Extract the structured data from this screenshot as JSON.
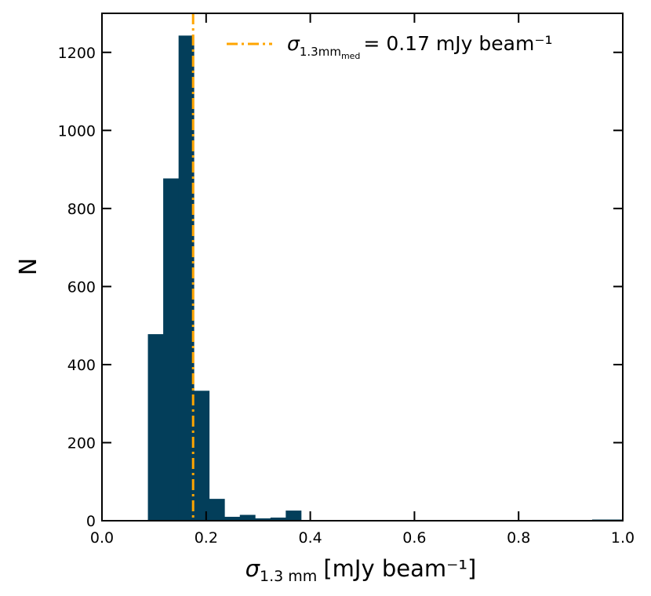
{
  "chart_data": {
    "type": "bar",
    "subtype": "histogram",
    "xlabel": {
      "symbol": "σ",
      "subscript": "1.3 mm",
      "unit": "[mJy beam⁻¹]"
    },
    "ylabel": "N",
    "xlim": [
      0.0,
      1.0
    ],
    "ylim": [
      0,
      1300
    ],
    "xticks": [
      "0.0",
      "0.2",
      "0.4",
      "0.6",
      "0.8",
      "1.0"
    ],
    "yticks": [
      "0",
      "200",
      "400",
      "600",
      "800",
      "1000",
      "1200"
    ],
    "bin_edges": [
      0.0,
      0.0294,
      0.0588,
      0.0882,
      0.1176,
      0.1471,
      0.1765,
      0.2059,
      0.2353,
      0.2647,
      0.2941,
      0.3235,
      0.3529,
      0.3824,
      0.4118,
      0.4412,
      0.4706,
      0.5,
      0.5294,
      0.5588,
      0.5882,
      0.6176,
      0.6471,
      0.6765,
      0.7059,
      0.7353,
      0.7647,
      0.7941,
      0.8235,
      0.8529,
      0.8824,
      0.9118,
      0.9412,
      0.9706,
      1.0
    ],
    "values": [
      0,
      0,
      0,
      478,
      877,
      1243,
      333,
      56,
      10,
      15,
      6,
      8,
      26,
      0,
      0,
      0,
      0,
      0,
      0,
      0,
      2,
      0,
      0,
      0,
      0,
      0,
      0,
      0,
      0,
      0,
      0,
      0,
      3,
      3
    ],
    "reference_line": {
      "x": 0.175,
      "style": "dash-dot",
      "legend": {
        "symbol": "σ",
        "subscript": "1.3mm",
        "subsubscript": "med",
        "text": "= 0.17 mJy beam⁻¹"
      }
    },
    "legend_position": "top-right",
    "colors": {
      "bars": "#033e5a",
      "reference_line": "#ffa500"
    },
    "grid": false
  }
}
